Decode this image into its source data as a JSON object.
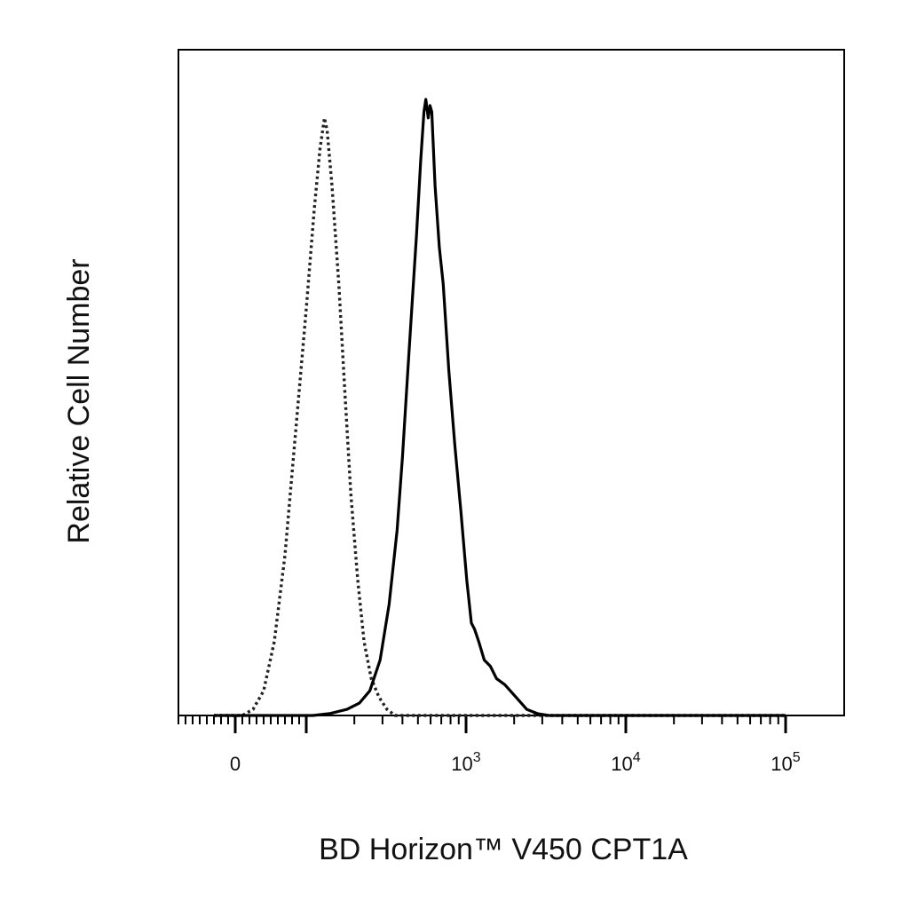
{
  "chart_data": {
    "type": "line",
    "title": "",
    "xlabel": "BD Horizon™ V450 CPT1A",
    "ylabel": "Relative Cell Number",
    "x_scale": "biexponential",
    "x_tick_labels": [
      {
        "value": 0,
        "label": "0"
      },
      {
        "value": 1000,
        "base": "10",
        "exp": "3"
      },
      {
        "value": 10000,
        "base": "10",
        "exp": "4"
      },
      {
        "value": 100000,
        "base": "10",
        "exp": "5"
      }
    ],
    "ylim": [
      0,
      100
    ],
    "grid": false,
    "legend": "none",
    "series": [
      {
        "style": "dotted",
        "color": "#222222",
        "points": [
          [
            -30,
            0
          ],
          [
            10,
            0
          ],
          [
            25,
            1
          ],
          [
            40,
            4
          ],
          [
            55,
            12
          ],
          [
            70,
            26
          ],
          [
            85,
            46
          ],
          [
            100,
            66
          ],
          [
            112,
            82
          ],
          [
            122,
            92
          ],
          [
            130,
            97
          ],
          [
            135,
            95
          ],
          [
            145,
            86
          ],
          [
            160,
            70
          ],
          [
            175,
            52
          ],
          [
            190,
            36
          ],
          [
            210,
            22
          ],
          [
            230,
            12
          ],
          [
            255,
            6
          ],
          [
            285,
            3
          ],
          [
            320,
            1
          ],
          [
            360,
            0
          ],
          [
            100000,
            0
          ]
        ]
      },
      {
        "style": "solid",
        "color": "#000000",
        "points": [
          [
            -30,
            0
          ],
          [
            110,
            0
          ],
          [
            140,
            0.3
          ],
          [
            180,
            1
          ],
          [
            215,
            2
          ],
          [
            250,
            4
          ],
          [
            290,
            9
          ],
          [
            330,
            18
          ],
          [
            370,
            30
          ],
          [
            400,
            42
          ],
          [
            430,
            55
          ],
          [
            460,
            67
          ],
          [
            490,
            78
          ],
          [
            520,
            90
          ],
          [
            545,
            98
          ],
          [
            560,
            100
          ],
          [
            580,
            97
          ],
          [
            595,
            99
          ],
          [
            610,
            98
          ],
          [
            640,
            86
          ],
          [
            680,
            76
          ],
          [
            720,
            70
          ],
          [
            780,
            56
          ],
          [
            850,
            44
          ],
          [
            930,
            33
          ],
          [
            1010,
            22
          ],
          [
            1080,
            15
          ],
          [
            1130,
            14
          ],
          [
            1200,
            12
          ],
          [
            1300,
            9
          ],
          [
            1420,
            8
          ],
          [
            1550,
            6
          ],
          [
            1750,
            5
          ],
          [
            2050,
            3
          ],
          [
            2400,
            1
          ],
          [
            2800,
            0.3
          ],
          [
            3300,
            0
          ],
          [
            100000,
            0
          ]
        ]
      }
    ]
  }
}
